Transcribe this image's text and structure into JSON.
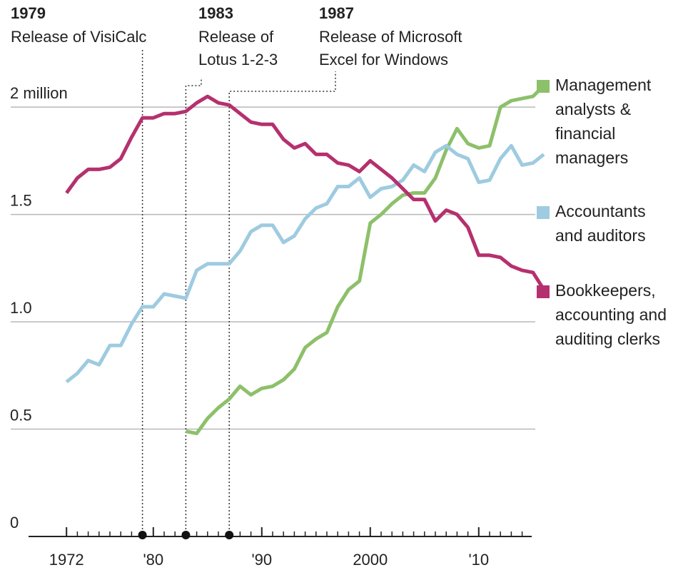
{
  "chart_data": {
    "type": "line",
    "x": [
      1972,
      1973,
      1974,
      1975,
      1976,
      1977,
      1978,
      1979,
      1980,
      1981,
      1982,
      1983,
      1984,
      1985,
      1986,
      1987,
      1988,
      1989,
      1990,
      1991,
      1992,
      1993,
      1994,
      1995,
      1996,
      1997,
      1998,
      1999,
      2000,
      2001,
      2002,
      2003,
      2004,
      2005,
      2006,
      2007,
      2008,
      2009,
      2010,
      2011,
      2012,
      2013,
      2014,
      2015,
      2016
    ],
    "series": [
      {
        "name": "Management analysts & financial managers",
        "color": "#8dc06a",
        "values": [
          null,
          null,
          null,
          null,
          null,
          null,
          null,
          null,
          null,
          null,
          null,
          0.49,
          0.48,
          0.55,
          0.6,
          0.64,
          0.7,
          0.66,
          0.69,
          0.7,
          0.73,
          0.78,
          0.88,
          0.92,
          0.95,
          1.07,
          1.15,
          1.19,
          1.46,
          1.5,
          1.55,
          1.59,
          1.6,
          1.6,
          1.67,
          1.8,
          1.9,
          1.83,
          1.81,
          1.82,
          2.0,
          2.03,
          2.04,
          2.05,
          2.1
        ]
      },
      {
        "name": "Accountants and auditors",
        "color": "#9ecbe0",
        "values": [
          0.72,
          0.76,
          0.82,
          0.8,
          0.89,
          0.89,
          0.99,
          1.07,
          1.07,
          1.13,
          1.12,
          1.11,
          1.24,
          1.27,
          1.27,
          1.27,
          1.33,
          1.42,
          1.45,
          1.45,
          1.37,
          1.4,
          1.48,
          1.53,
          1.55,
          1.63,
          1.63,
          1.67,
          1.58,
          1.62,
          1.63,
          1.66,
          1.73,
          1.7,
          1.79,
          1.82,
          1.78,
          1.76,
          1.65,
          1.66,
          1.76,
          1.82,
          1.73,
          1.74,
          1.78
        ]
      },
      {
        "name": "Bookkeepers, accounting and auditing clerks",
        "color": "#b5306e",
        "values": [
          1.6,
          1.67,
          1.71,
          1.71,
          1.72,
          1.76,
          1.86,
          1.95,
          1.95,
          1.97,
          1.97,
          1.98,
          2.02,
          2.05,
          2.02,
          2.01,
          1.97,
          1.93,
          1.92,
          1.92,
          1.85,
          1.81,
          1.83,
          1.78,
          1.78,
          1.74,
          1.73,
          1.7,
          1.75,
          1.71,
          1.67,
          1.62,
          1.57,
          1.57,
          1.47,
          1.52,
          1.5,
          1.44,
          1.31,
          1.31,
          1.3,
          1.26,
          1.24,
          1.23,
          1.15
        ]
      }
    ],
    "xlim": [
      1968.5,
      2016
    ],
    "xticks": [
      1972,
      {
        "value": 1980,
        "label": "'80"
      },
      {
        "value": 1990,
        "label": "'90"
      },
      2000,
      {
        "value": 2010,
        "label": "'10"
      }
    ],
    "ylim": [
      0,
      2.2
    ],
    "yticks": [
      0,
      0.5,
      {
        "value": 1,
        "label": "1.0"
      },
      1.5,
      {
        "value": 2,
        "label": "2 million"
      }
    ],
    "grid": true,
    "annotations": [
      {
        "x": 1979,
        "text": [
          "Release of VisiCalc"
        ]
      },
      {
        "x": 1983,
        "text": [
          "Release of",
          "Lotus 1-2-3"
        ]
      },
      {
        "x": 1987,
        "text": [
          "Release of Microsoft",
          "Excel for Windows"
        ]
      }
    ]
  }
}
